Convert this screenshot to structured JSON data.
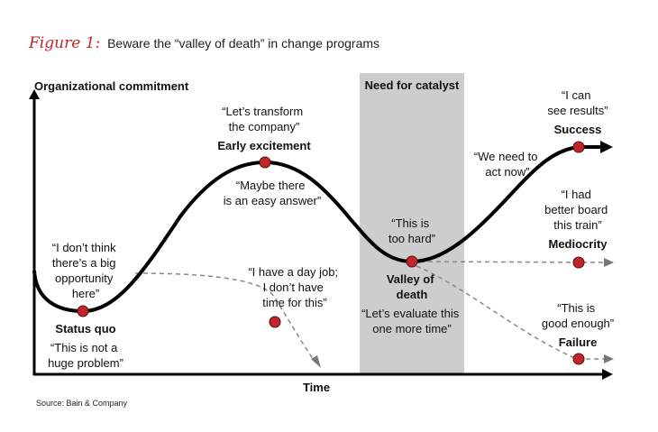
{
  "figure": {
    "label": "Figure 1:",
    "caption": "Beware the “valley of death” in change programs",
    "source": "Source: Bain & Company"
  },
  "axes": {
    "y_label": "Organizational commitment",
    "x_label": "Time"
  },
  "catalyst_zone": {
    "label": "Need for catalyst"
  },
  "stages": {
    "status_quo": {
      "name": "Status quo",
      "quote_before": [
        "“I don’t think",
        "there’s a big",
        "opportunity",
        "here”"
      ],
      "quote_after": [
        "“This is not a",
        "huge problem”"
      ]
    },
    "early_excitement": {
      "name": "Early excitement",
      "quote_above": [
        "“Let’s transform",
        "the company”"
      ],
      "quote_below": [
        "“Maybe there",
        "is an easy answer”"
      ]
    },
    "day_job": {
      "quote": [
        "“I have a day job;",
        "I don’t have",
        "time for this”"
      ]
    },
    "valley_of_death": {
      "name": [
        "Valley of",
        "death"
      ],
      "quote_above": [
        "“This is",
        "too hard”"
      ],
      "quote_below": [
        "“Let’s evaluate this",
        "one more time”"
      ]
    },
    "act_now": {
      "quote": [
        "“We need to",
        "act now”"
      ]
    },
    "success": {
      "name": "Success",
      "quote": [
        "“I can",
        "see results”"
      ]
    },
    "mediocrity": {
      "name": "Mediocrity",
      "quote": [
        "“I had",
        "better board",
        "this train”"
      ]
    },
    "failure": {
      "name": "Failure",
      "quote": [
        "“This is",
        "good enough”"
      ]
    }
  },
  "colors": {
    "accent": "#c0262c",
    "catalyst_band": "#cdcdcd",
    "curve": "#000000",
    "dashed": "#888888"
  }
}
